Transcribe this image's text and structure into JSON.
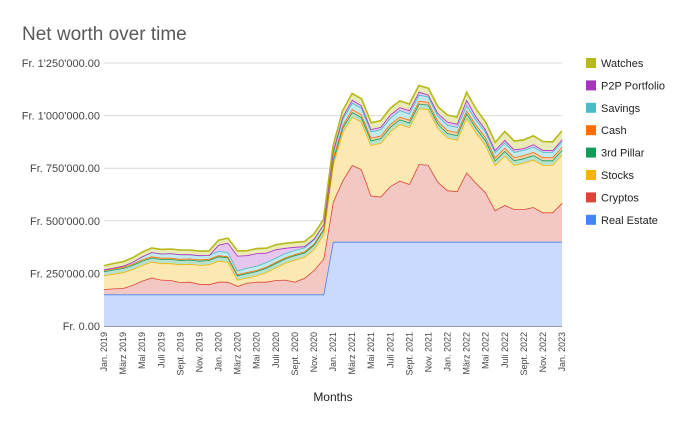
{
  "chart_data": {
    "type": "area",
    "stacked": true,
    "title": "Net worth over time",
    "xlabel": "Months",
    "ylabel": "",
    "ylim": [
      0,
      1250000
    ],
    "yticks": [
      0,
      250000,
      500000,
      750000,
      1000000,
      1250000
    ],
    "ytick_labels": [
      "Fr. 0.00",
      "Fr. 250'000.00",
      "Fr. 500'000.00",
      "Fr. 750'000.00",
      "Fr. 1'000'000.00",
      "Fr. 1'250'000.00"
    ],
    "grid": true,
    "legend_position": "right",
    "x": [
      "Jan. 2019",
      "Feb. 2019",
      "März 2019",
      "Apr. 2019",
      "Mai 2019",
      "Juni 2019",
      "Juli 2019",
      "Aug. 2019",
      "Sept. 2019",
      "Okt. 2019",
      "Nov. 2019",
      "Dez. 2019",
      "Jan. 2020",
      "Feb. 2020",
      "März 2020",
      "Apr. 2020",
      "Mai 2020",
      "Juni 2020",
      "Juli 2020",
      "Aug. 2020",
      "Sept. 2020",
      "Okt. 2020",
      "Nov. 2020",
      "Dez. 2020",
      "Jan. 2021",
      "Feb. 2021",
      "März 2021",
      "Apr. 2021",
      "Mai 2021",
      "Juni 2021",
      "Juli 2021",
      "Aug. 2021",
      "Sept. 2021",
      "Okt. 2021",
      "Nov. 2021",
      "Dez. 2021",
      "Jan. 2022",
      "Feb. 2022",
      "März 2022",
      "Apr. 2022",
      "Mai 2022",
      "Juni 2022",
      "Juli 2022",
      "Aug. 2022",
      "Sept. 2022",
      "Okt. 2022",
      "Nov. 2022",
      "Dez. 2022",
      "Jan. 2023"
    ],
    "x_tick_labels": [
      "Jan. 2019",
      "",
      "März 2019",
      "",
      "Mai 2019",
      "",
      "Juli 2019",
      "",
      "Sept. 2019",
      "",
      "Nov. 2019",
      "",
      "Jan. 2020",
      "",
      "März 2020",
      "",
      "Mai 2020",
      "",
      "Juli 2020",
      "",
      "Sept. 2020",
      "",
      "Nov. 2020",
      "",
      "Jan. 2021",
      "",
      "März 2021",
      "",
      "Mai 2021",
      "",
      "Juli 2021",
      "",
      "Sept. 2021",
      "",
      "Nov. 2021",
      "",
      "Jan. 2022",
      "",
      "März 2022",
      "",
      "Mai 2022",
      "",
      "Juli 2022",
      "",
      "Sept. 2022",
      "",
      "Nov. 2022",
      "",
      "Jan. 2023"
    ],
    "series": [
      {
        "name": "Real Estate",
        "color": "#4285f4",
        "fill": "#c9dafc",
        "values": [
          150000,
          150000,
          150000,
          150000,
          150000,
          150000,
          150000,
          150000,
          150000,
          150000,
          150000,
          150000,
          150000,
          150000,
          150000,
          150000,
          150000,
          150000,
          150000,
          150000,
          150000,
          150000,
          150000,
          150000,
          400000,
          400000,
          400000,
          400000,
          400000,
          400000,
          400000,
          400000,
          400000,
          400000,
          400000,
          400000,
          400000,
          400000,
          400000,
          400000,
          400000,
          400000,
          400000,
          400000,
          400000,
          400000,
          400000,
          400000,
          400000
        ]
      },
      {
        "name": "Cryptos",
        "color": "#db4437",
        "fill": "#f3c7c3",
        "values": [
          25000,
          28000,
          30000,
          45000,
          65000,
          80000,
          70000,
          68000,
          58000,
          60000,
          50000,
          48000,
          60000,
          60000,
          40000,
          55000,
          60000,
          60000,
          68000,
          70000,
          60000,
          78000,
          115000,
          170000,
          190000,
          290000,
          365000,
          345000,
          220000,
          215000,
          265000,
          290000,
          275000,
          370000,
          365000,
          285000,
          245000,
          240000,
          330000,
          280000,
          235000,
          150000,
          175000,
          155000,
          155000,
          165000,
          140000,
          140000,
          185000
        ]
      },
      {
        "name": "Stocks",
        "color": "#f4b400",
        "fill": "#fce8b2",
        "values": [
          65000,
          70000,
          75000,
          75000,
          75000,
          75000,
          78000,
          80000,
          85000,
          85000,
          90000,
          95000,
          100000,
          95000,
          30000,
          25000,
          30000,
          45000,
          60000,
          80000,
          105000,
          100000,
          100000,
          115000,
          175000,
          230000,
          230000,
          225000,
          240000,
          255000,
          260000,
          270000,
          270000,
          265000,
          265000,
          255000,
          250000,
          245000,
          260000,
          240000,
          225000,
          215000,
          235000,
          210000,
          220000,
          225000,
          225000,
          225000,
          230000
        ]
      },
      {
        "name": "3rd Pillar",
        "color": "#0f9d58",
        "fill": "#b7e1cd",
        "values": [
          20000,
          20000,
          20000,
          20000,
          20000,
          20000,
          20000,
          20000,
          20000,
          20000,
          20000,
          20000,
          21000,
          21000,
          21000,
          21000,
          21000,
          21000,
          21000,
          21000,
          21000,
          21000,
          21000,
          22000,
          22000,
          22000,
          22000,
          22000,
          22000,
          22000,
          22000,
          22000,
          22000,
          22000,
          22000,
          22000,
          22000,
          22000,
          22000,
          22000,
          22000,
          22000,
          22000,
          22000,
          22000,
          22000,
          22000,
          22000,
          22000
        ]
      },
      {
        "name": "Cash",
        "color": "#ff6d00",
        "fill": "#ffd3b0",
        "values": [
          6000,
          6000,
          6000,
          6000,
          6000,
          6000,
          6000,
          6000,
          6000,
          6000,
          6000,
          6000,
          5000,
          5000,
          5000,
          5000,
          5000,
          5000,
          5000,
          5000,
          5000,
          5000,
          5000,
          5000,
          10000,
          12000,
          14000,
          13000,
          13000,
          13000,
          13000,
          13000,
          13000,
          13000,
          13000,
          13000,
          14000,
          14000,
          14000,
          14000,
          15000,
          15000,
          15000,
          15000,
          15000,
          15000,
          15000,
          15000,
          15000
        ]
      },
      {
        "name": "Savings",
        "color": "#46bdc6",
        "fill": "#c0eaee",
        "values": [
          3000,
          3000,
          5000,
          8000,
          15000,
          20000,
          20000,
          22000,
          22000,
          20000,
          20000,
          18000,
          20000,
          20000,
          18000,
          20000,
          20000,
          22000,
          20000,
          20000,
          20000,
          18000,
          20000,
          20000,
          25000,
          30000,
          30000,
          32000,
          30000,
          30000,
          30000,
          30000,
          30000,
          30000,
          25000,
          25000,
          25000,
          25000,
          25000,
          25000,
          25000,
          25000,
          25000,
          25000,
          25000,
          25000,
          25000,
          25000,
          25000
        ]
      },
      {
        "name": "P2P Portfolio",
        "color": "#ab30c4",
        "fill": "#e6c5ee",
        "values": [
          0,
          0,
          0,
          0,
          0,
          0,
          0,
          0,
          0,
          0,
          0,
          0,
          30000,
          45000,
          70000,
          60000,
          60000,
          45000,
          40000,
          25000,
          15000,
          7000,
          4000,
          2000,
          10000,
          10000,
          14000,
          11000,
          11000,
          11000,
          15000,
          15000,
          15000,
          13000,
          10000,
          12000,
          15000,
          15000,
          25000,
          15000,
          12000,
          10000,
          13000,
          12000,
          8000,
          12000,
          10000,
          8000,
          10000
        ]
      },
      {
        "name": "Watches",
        "color": "#b5b919",
        "fill": "#e9eab8",
        "values": [
          18000,
          20000,
          20000,
          20000,
          20000,
          20000,
          20000,
          20000,
          20000,
          20000,
          20000,
          20000,
          22000,
          22000,
          22000,
          22000,
          22000,
          22000,
          22000,
          22000,
          22000,
          22000,
          22000,
          23000,
          23000,
          28000,
          30000,
          32000,
          30000,
          30000,
          30000,
          30000,
          30000,
          30000,
          30000,
          30000,
          32000,
          32000,
          35000,
          35000,
          35000,
          35000,
          40000,
          40000,
          40000,
          40000,
          40000,
          40000,
          40000
        ]
      }
    ]
  }
}
